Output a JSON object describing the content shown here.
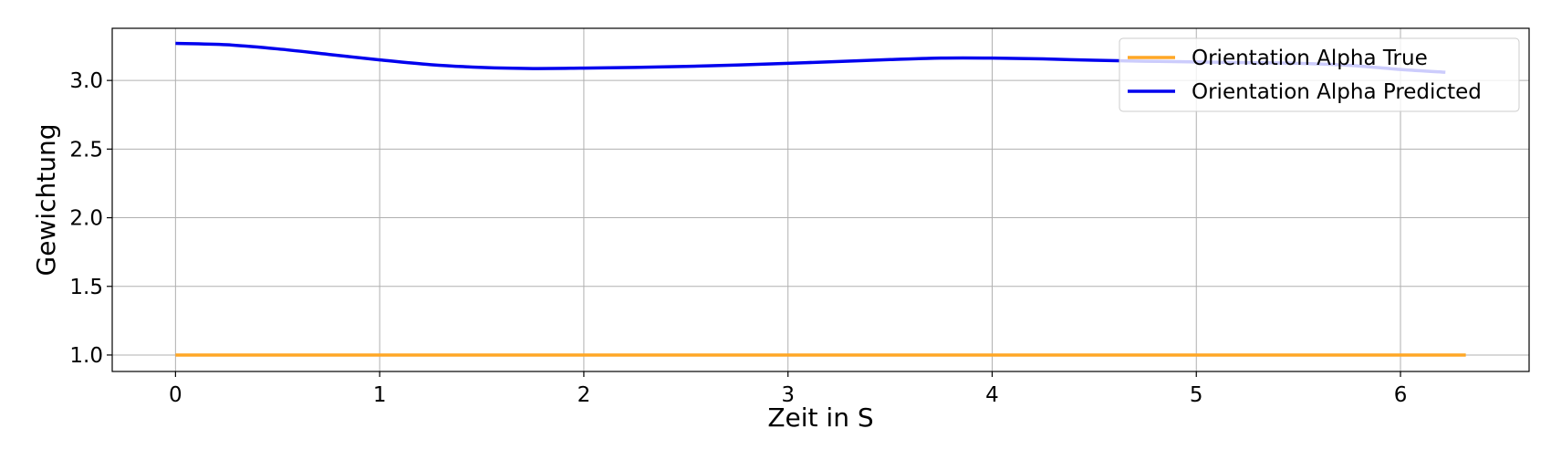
{
  "chart_data": {
    "type": "line",
    "title": "",
    "xlabel": "Zeit in S",
    "ylabel": "Gewichtung",
    "xlim": [
      -0.31,
      6.63
    ],
    "ylim": [
      0.88,
      3.38
    ],
    "xticks": [
      0,
      1,
      2,
      3,
      4,
      5,
      6
    ],
    "yticks": [
      1.0,
      1.5,
      2.0,
      2.5,
      3.0
    ],
    "xtick_labels": [
      "0",
      "1",
      "2",
      "3",
      "4",
      "5",
      "6"
    ],
    "ytick_labels": [
      "1.0",
      "1.5",
      "2.0",
      "2.5",
      "3.0"
    ],
    "grid": true,
    "legend_position": "top-right",
    "series": [
      {
        "name": "Orientation Alpha True",
        "color": "#FFA726",
        "x": [
          0,
          6.32
        ],
        "y": [
          1.0,
          1.0
        ]
      },
      {
        "name": "Orientation Alpha Predicted",
        "color": "#0000EE",
        "x": [
          0,
          0.25,
          0.5,
          0.75,
          1.0,
          1.25,
          1.5,
          1.75,
          2.0,
          2.25,
          2.5,
          2.75,
          3.0,
          3.25,
          3.5,
          3.75,
          4.0,
          4.25,
          4.5,
          4.75,
          5.0,
          5.25,
          5.5,
          5.75,
          6.0,
          6.22
        ],
        "y": [
          3.27,
          3.26,
          3.23,
          3.19,
          3.15,
          3.115,
          3.095,
          3.087,
          3.09,
          3.095,
          3.102,
          3.112,
          3.125,
          3.138,
          3.152,
          3.163,
          3.163,
          3.157,
          3.147,
          3.14,
          3.135,
          3.13,
          3.125,
          3.11,
          3.08,
          3.06
        ]
      }
    ]
  }
}
